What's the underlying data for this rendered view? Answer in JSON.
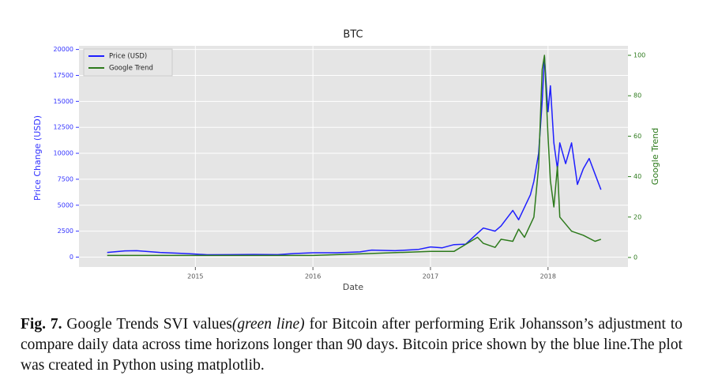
{
  "chart_data": {
    "type": "line",
    "title": "BTC",
    "xlabel": "Date",
    "ylabel": "Price Change (USD)",
    "y2label": "Google Trend",
    "xlim": [
      2014.01,
      2018.68
    ],
    "xticks": [
      2015,
      2016,
      2017,
      2018
    ],
    "ylim": [
      -950,
      20350
    ],
    "yticks": [
      0,
      2500,
      5000,
      7500,
      10000,
      12500,
      15000,
      17500,
      20000
    ],
    "y2lim": [
      -4.7,
      104.7
    ],
    "y2ticks": [
      0,
      20,
      40,
      60,
      80,
      100
    ],
    "grid": true,
    "legend": "upper-left",
    "background": "#e5e5e5",
    "series": [
      {
        "name": "Price (USD)",
        "color": "#1f1fff",
        "x": [
          2014.25,
          2014.4,
          2014.5,
          2014.7,
          2014.9,
          2015.0,
          2015.1,
          2015.3,
          2015.5,
          2015.7,
          2015.85,
          2016.0,
          2016.2,
          2016.4,
          2016.5,
          2016.7,
          2016.9,
          2017.0,
          2017.1,
          2017.2,
          2017.3,
          2017.4,
          2017.45,
          2017.55,
          2017.6,
          2017.7,
          2017.75,
          2017.8,
          2017.85,
          2017.88,
          2017.92,
          2017.95,
          2017.97,
          2018.0,
          2018.02,
          2018.05,
          2018.08,
          2018.1,
          2018.15,
          2018.2,
          2018.25,
          2018.3,
          2018.35,
          2018.4,
          2018.45
        ],
        "values": [
          450,
          600,
          620,
          450,
          350,
          300,
          230,
          240,
          260,
          240,
          350,
          420,
          420,
          500,
          680,
          620,
          750,
          980,
          900,
          1200,
          1250,
          2300,
          2800,
          2500,
          3000,
          4500,
          3600,
          4800,
          6000,
          7300,
          10000,
          15000,
          19300,
          14000,
          16500,
          11000,
          8500,
          11000,
          9000,
          11000,
          7000,
          8500,
          9500,
          8000,
          6500
        ]
      },
      {
        "name": "Google Trend",
        "color": "#2d7a1c",
        "axis": "y2",
        "x": [
          2014.25,
          2015.0,
          2016.0,
          2016.5,
          2017.0,
          2017.2,
          2017.4,
          2017.45,
          2017.55,
          2017.6,
          2017.7,
          2017.75,
          2017.8,
          2017.88,
          2017.92,
          2017.95,
          2017.97,
          2018.0,
          2018.02,
          2018.05,
          2018.08,
          2018.1,
          2018.2,
          2018.3,
          2018.4,
          2018.45
        ],
        "values": [
          1,
          1,
          1,
          2,
          3,
          3,
          10,
          7,
          5,
          9,
          8,
          14,
          10,
          20,
          45,
          93,
          100,
          60,
          38,
          25,
          45,
          20,
          13,
          11,
          8,
          9
        ]
      }
    ]
  },
  "caption": {
    "label": "Fig. 7.",
    "text1": "Google Trends SVI values",
    "emphasis": "(green line)",
    "text2": "for Bitcoin after performing Erik Johansson’s adjustment to compare daily data across time horizons longer than 90 days. Bitcoin price shown by the blue line.The plot was created in Python using matplotlib."
  }
}
